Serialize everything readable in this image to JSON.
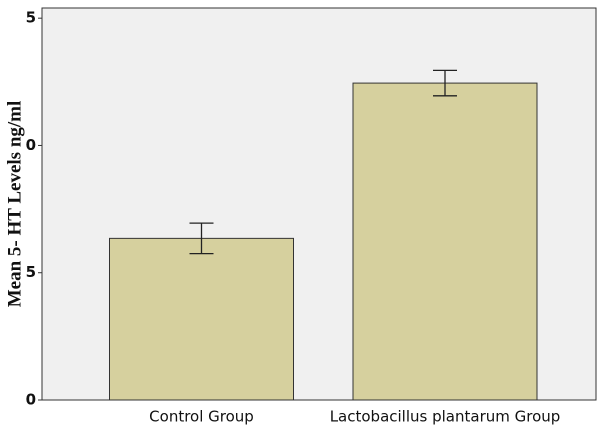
{
  "chart_data": {
    "type": "bar",
    "ylabel": "Mean 5- HT Levels ng/ml",
    "categories": [
      "Control Group",
      "Lactobacillus plantarum Group"
    ],
    "values": [
      6.35,
      12.45
    ],
    "errors": [
      0.6,
      0.5
    ],
    "color": "#d6d09e",
    "ylim": [
      0,
      15.4
    ],
    "yticks": [
      0,
      5,
      {
        "value": 10,
        "label": "0"
      },
      {
        "value": 15,
        "label": "5"
      }
    ]
  }
}
